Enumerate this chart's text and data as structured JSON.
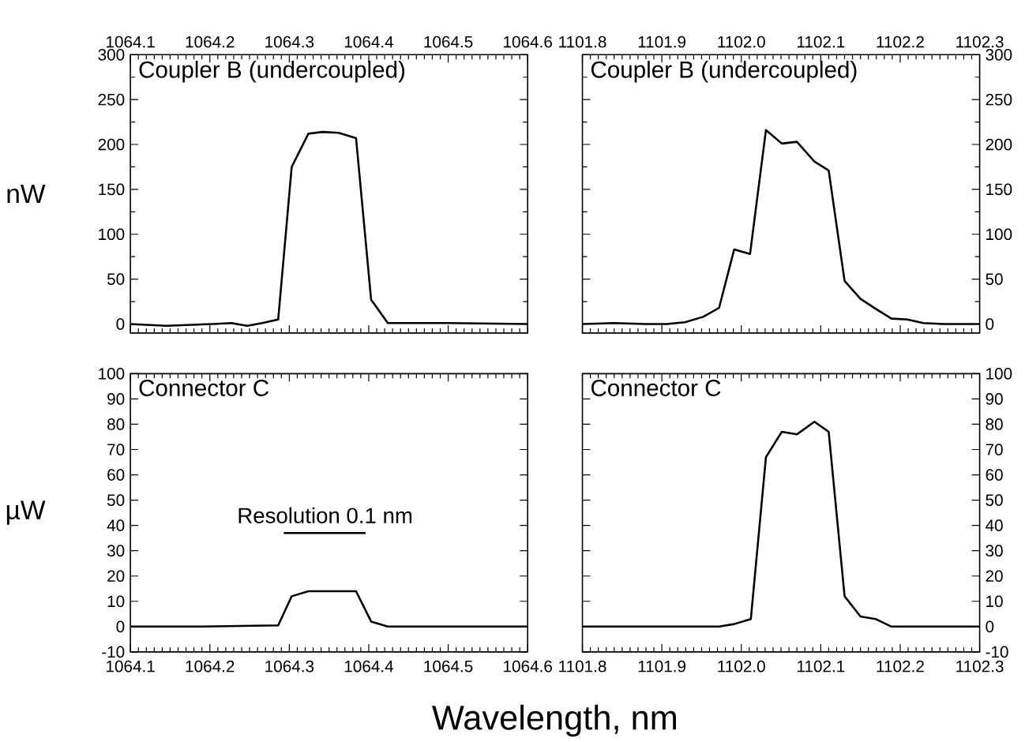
{
  "chart_data": [
    {
      "type": "line",
      "title": "Coupler  B  (undercoupled)",
      "ylabel": "nW",
      "xlim": [
        1064.1,
        1064.6
      ],
      "ylim": [
        -10,
        300
      ],
      "xticks": [
        {
          "value": 1064.1,
          "label": "1064.1"
        },
        {
          "value": 1064.2,
          "label": "1064.2"
        },
        {
          "value": 1064.3,
          "label": "1064.3"
        },
        {
          "value": 1064.4,
          "label": "1064.4"
        },
        {
          "value": 1064.5,
          "label": "1064.5"
        },
        {
          "value": 1064.6,
          "label": "1064.6"
        }
      ],
      "yticks": [
        0,
        50,
        100,
        150,
        200,
        250,
        300
      ],
      "series": [
        {
          "color": "#000000",
          "x": [
            1064.1,
            1064.145,
            1064.204,
            1064.227,
            1064.247,
            1064.266,
            1064.286,
            1064.303,
            1064.324,
            1064.342,
            1064.362,
            1064.384,
            1064.403,
            1064.424,
            1064.5,
            1064.6
          ],
          "values": [
            0,
            -2,
            0,
            1,
            -2,
            1,
            5,
            175,
            212,
            214,
            213,
            207,
            27,
            1,
            1,
            0
          ]
        }
      ]
    },
    {
      "type": "line",
      "title": "Coupler  B  (undercoupled)",
      "xlim": [
        1101.8,
        1102.3
      ],
      "ylim": [
        -10,
        300
      ],
      "xticks": [
        {
          "value": 1101.8,
          "label": "1101.8"
        },
        {
          "value": 1101.9,
          "label": "1101.9"
        },
        {
          "value": 1102.0,
          "label": "1102.0"
        },
        {
          "value": 1102.1,
          "label": "1102.1"
        },
        {
          "value": 1102.2,
          "label": "1102.2"
        },
        {
          "value": 1102.3,
          "label": "1102.3"
        }
      ],
      "yticks": [
        0,
        50,
        100,
        150,
        200,
        250,
        300
      ],
      "series": [
        {
          "color": "#000000",
          "x": [
            1101.8,
            1101.84,
            1101.879,
            1101.906,
            1101.929,
            1101.952,
            1101.972,
            1101.991,
            1102.011,
            1102.031,
            1102.051,
            1102.07,
            1102.092,
            1102.11,
            1102.13,
            1102.15,
            1102.169,
            1102.189,
            1102.209,
            1102.229,
            1102.255,
            1102.3
          ],
          "values": [
            0,
            1,
            0,
            0,
            2,
            8,
            18,
            83,
            78,
            216,
            201,
            203,
            181,
            171,
            48,
            28,
            17,
            6,
            5,
            1,
            0,
            0
          ]
        }
      ]
    },
    {
      "type": "line",
      "title": "Connector  C",
      "ylabel": "µW",
      "xlabel": "Wavelength, nm",
      "xlim": [
        1064.1,
        1064.6
      ],
      "ylim": [
        -10,
        100
      ],
      "xticks": [
        {
          "value": 1064.1,
          "label": "1064.1"
        },
        {
          "value": 1064.2,
          "label": "1064.2"
        },
        {
          "value": 1064.3,
          "label": "1064.3"
        },
        {
          "value": 1064.4,
          "label": "1064.4"
        },
        {
          "value": 1064.5,
          "label": "1064.5"
        },
        {
          "value": 1064.6,
          "label": "1064.6"
        }
      ],
      "yticks": [
        -10,
        0,
        10,
        20,
        30,
        40,
        50,
        60,
        70,
        80,
        90,
        100
      ],
      "annotations": [
        {
          "text": "Resolution 0.1 nm",
          "x": 1064.345,
          "y": 37
        }
      ],
      "series": [
        {
          "color": "#000000",
          "x": [
            1064.1,
            1064.145,
            1064.19,
            1064.286,
            1064.303,
            1064.324,
            1064.342,
            1064.362,
            1064.384,
            1064.403,
            1064.424,
            1064.6
          ],
          "values": [
            0,
            0,
            0,
            0.5,
            12,
            14,
            14,
            14,
            14,
            2,
            0,
            0
          ]
        },
        {
          "type": "line",
          "color": "#000000",
          "x": [
            1064.293,
            1064.396
          ],
          "values": [
            37,
            37
          ]
        }
      ]
    },
    {
      "type": "line",
      "title": "Connector  C",
      "xlim": [
        1101.8,
        1102.3
      ],
      "ylim": [
        -10,
        100
      ],
      "xticks": [
        {
          "value": 1101.8,
          "label": "1101.8"
        },
        {
          "value": 1101.9,
          "label": "1101.9"
        },
        {
          "value": 1102.0,
          "label": "1102.0"
        },
        {
          "value": 1102.1,
          "label": "1102.1"
        },
        {
          "value": 1102.2,
          "label": "1102.2"
        },
        {
          "value": 1102.3,
          "label": "1102.3"
        }
      ],
      "yticks": [
        -10,
        0,
        10,
        20,
        30,
        40,
        50,
        60,
        70,
        80,
        90,
        100
      ],
      "series": [
        {
          "color": "#000000",
          "x": [
            1101.8,
            1101.972,
            1101.991,
            1102.012,
            1102.031,
            1102.051,
            1102.07,
            1102.092,
            1102.11,
            1102.13,
            1102.15,
            1102.169,
            1102.189,
            1102.3
          ],
          "values": [
            0,
            0,
            1,
            3,
            67,
            77,
            76,
            81,
            77,
            12,
            4,
            3,
            0,
            0
          ]
        }
      ]
    }
  ]
}
